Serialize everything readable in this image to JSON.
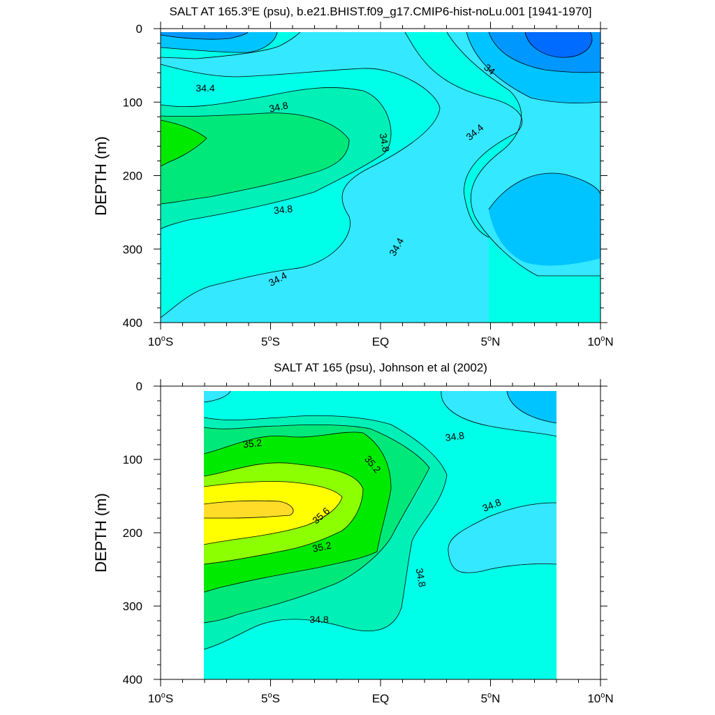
{
  "colors": {
    "levels": {
      "33.2": "#006bff",
      "33.6": "#0098ff",
      "34.0": "#00c4ff",
      "34.4": "#33e8ff",
      "34.6": "#00ffe8",
      "34.8": "#00f0b8",
      "35.0": "#00e87a",
      "35.2": "#00ea00",
      "35.4": "#8cff00",
      "35.6": "#ffff00",
      "35.8": "#ffdc28"
    },
    "line": "#000000"
  },
  "chart_data": [
    {
      "type": "contour",
      "title_parts": [
        "SALT AT 165.3",
        "o",
        "E (psu), b.e21.BHIST.f09_g17.CMIP6-hist-noLu.001 [1941-1970]"
      ],
      "title_text": "SALT AT 165.3°E (psu), b.e21.BHIST.f09_g17.CMIP6-hist-noLu.001 [1941-1970]",
      "ylabel": "DEPTH (m)",
      "xlim": [
        -10,
        10
      ],
      "ylim": [
        400,
        0
      ],
      "y_ticks": [
        "0",
        "100",
        "200",
        "300",
        "400"
      ],
      "x_ticks": [
        {
          "num": "10",
          "hemi": "S"
        },
        {
          "num": "5",
          "hemi": "S"
        },
        {
          "num": "EQ",
          "hemi": ""
        },
        {
          "num": "5",
          "hemi": "N"
        },
        {
          "num": "10",
          "hemi": "N"
        }
      ],
      "contour_labels": [
        "34.4",
        "34.8",
        "34.8",
        "34",
        "34.4",
        "34.8",
        "34.4",
        "34.4"
      ]
    },
    {
      "type": "contour",
      "title_parts": [
        "SALT AT 165 (psu), Johnson et al (2002)",
        "",
        ""
      ],
      "title_text": "SALT AT 165 (psu), Johnson et al (2002)",
      "ylabel": "DEPTH (m)",
      "xlim": [
        -10,
        10
      ],
      "ylim": [
        400,
        0
      ],
      "data_xlim": [
        -8,
        8
      ],
      "y_ticks": [
        "0",
        "100",
        "200",
        "300",
        "400"
      ],
      "x_ticks": [
        {
          "num": "10",
          "hemi": "S"
        },
        {
          "num": "5",
          "hemi": "S"
        },
        {
          "num": "EQ",
          "hemi": ""
        },
        {
          "num": "5",
          "hemi": "N"
        },
        {
          "num": "10",
          "hemi": "N"
        }
      ],
      "contour_labels": [
        "35.2",
        "35.2",
        "34.8",
        "35.6",
        "34.8",
        "35.2",
        "34.8",
        "34.8"
      ]
    }
  ]
}
